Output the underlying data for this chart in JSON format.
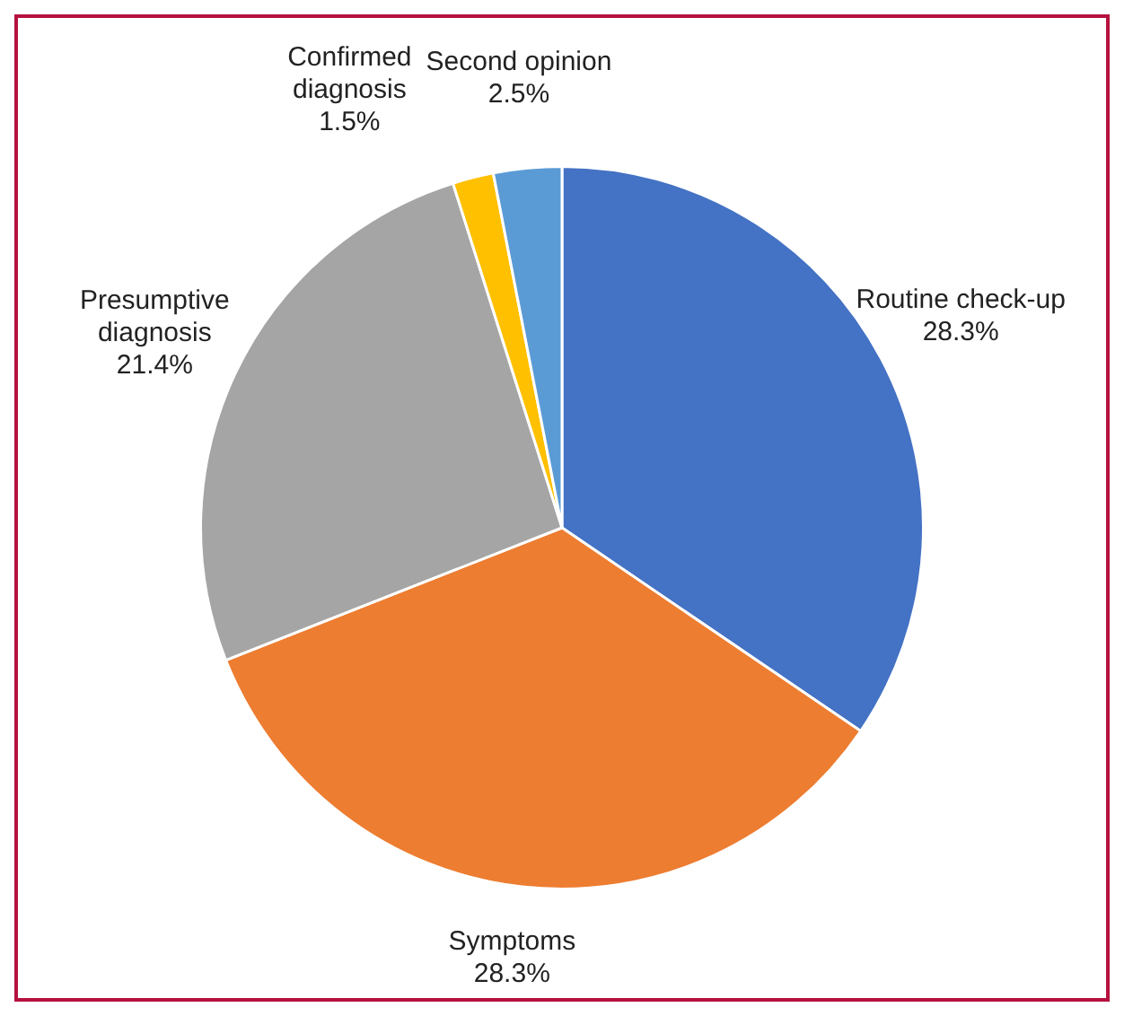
{
  "chart_data": {
    "type": "pie",
    "categories": [
      "Routine check-up",
      "Symptoms",
      "Presumptive diagnosis",
      "Confirmed diagnosis",
      "Second opinion"
    ],
    "values": [
      28.3,
      28.3,
      21.4,
      1.5,
      2.5
    ],
    "value_labels": [
      "28.3%",
      "28.3%",
      "21.4%",
      "1.5%",
      "2.5%"
    ],
    "colors": [
      "#4472c4",
      "#ed7d31",
      "#a5a5a5",
      "#ffc000",
      "#5b9bd5"
    ],
    "legend": false
  }
}
